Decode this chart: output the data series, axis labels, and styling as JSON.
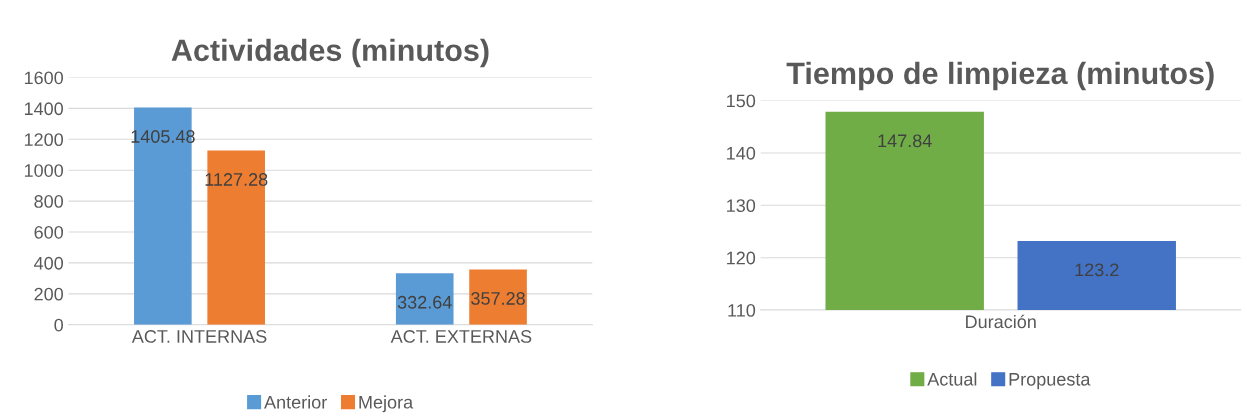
{
  "chart_data": [
    {
      "type": "bar",
      "title": "Actividades (minutos)",
      "categories": [
        "ACT. INTERNAS",
        "ACT. EXTERNAS"
      ],
      "series": [
        {
          "name": "Anterior",
          "color": "#5b9bd5",
          "values": [
            1405.48,
            332.64
          ]
        },
        {
          "name": "Mejora",
          "color": "#ed7d31",
          "values": [
            1127.28,
            357.28
          ]
        }
      ],
      "ylim": [
        0,
        1600
      ],
      "yticks": [
        0,
        200,
        400,
        600,
        800,
        1000,
        1200,
        1400,
        1600
      ],
      "grid": "y",
      "legend": "bottom",
      "data_labels": true
    },
    {
      "type": "bar",
      "title": "Tiempo de limpieza (minutos)",
      "categories": [
        "Duración"
      ],
      "series": [
        {
          "name": "Actual",
          "color": "#70ad47",
          "values": [
            147.84
          ]
        },
        {
          "name": "Propuesta",
          "color": "#4472c4",
          "values": [
            123.2
          ]
        }
      ],
      "ylim": [
        110,
        150
      ],
      "yticks": [
        110,
        120,
        130,
        140,
        150
      ],
      "grid": "y",
      "legend": "bottom",
      "data_labels": true
    }
  ]
}
